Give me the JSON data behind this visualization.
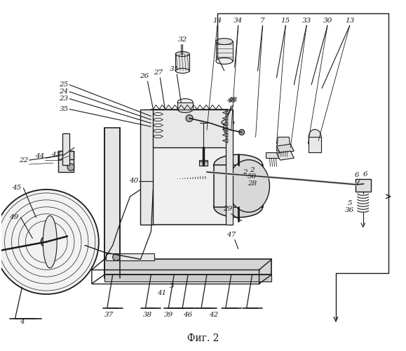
{
  "title": "Фиг. 2",
  "bg": "#ffffff",
  "lc": "#1a1a1a",
  "fw": 5.79,
  "fh": 5.0,
  "dpi": 100
}
